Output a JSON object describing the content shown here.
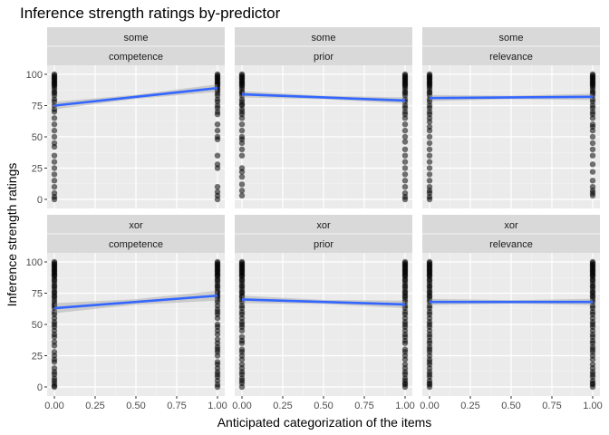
{
  "chart_data": {
    "type": "scatter",
    "title": "Inference strength ratings by-predictor",
    "xlabel": "Anticipated categorization of the items",
    "ylabel": "Inference strength ratings",
    "xlim": [
      0,
      1
    ],
    "ylim": [
      0,
      100
    ],
    "x_ticks": [
      "0.00",
      "0.25",
      "0.50",
      "0.75",
      "1.00"
    ],
    "y_ticks": [
      "0",
      "25",
      "50",
      "75",
      "100"
    ],
    "grid": true,
    "point_color": "#000000",
    "line_color": "#3366FF",
    "ribbon_color": "#999999",
    "panels": [
      {
        "row": "some",
        "col": "competence",
        "points_x0": [
          100,
          99,
          98,
          97,
          96,
          95,
          94,
          93,
          92,
          91,
          90,
          88,
          86,
          85,
          83,
          80,
          78,
          75,
          72,
          70,
          65,
          60,
          55,
          50,
          45,
          42,
          35,
          30,
          25,
          20,
          15,
          10,
          5,
          2,
          0
        ],
        "points_x1": [
          100,
          99,
          98,
          97,
          96,
          95,
          94,
          93,
          92,
          91,
          90,
          88,
          87,
          85,
          83,
          80,
          78,
          75,
          73,
          70,
          68,
          60,
          55,
          50,
          48,
          35,
          28,
          25,
          10,
          6,
          3,
          0
        ],
        "fit": [
          75,
          89
        ],
        "se": 3
      },
      {
        "row": "some",
        "col": "prior",
        "points_x0": [
          100,
          99,
          98,
          97,
          96,
          95,
          94,
          93,
          92,
          91,
          90,
          88,
          86,
          85,
          83,
          80,
          78,
          76,
          75,
          72,
          70,
          68,
          65,
          60,
          55,
          50,
          48,
          45,
          40,
          35,
          25,
          22,
          18,
          12,
          7,
          3
        ],
        "points_x1": [
          100,
          99,
          98,
          97,
          96,
          95,
          94,
          93,
          92,
          91,
          90,
          88,
          86,
          85,
          83,
          80,
          78,
          75,
          73,
          70,
          68,
          65,
          60,
          55,
          50,
          46,
          40,
          35,
          30,
          25,
          20,
          15,
          10,
          5,
          2,
          0
        ],
        "fit": [
          84,
          79
        ],
        "se": 2.5
      },
      {
        "row": "some",
        "col": "relevance",
        "points_x0": [
          100,
          99,
          98,
          97,
          96,
          95,
          94,
          93,
          92,
          91,
          90,
          88,
          86,
          85,
          83,
          80,
          78,
          75,
          73,
          70,
          68,
          65,
          62,
          58,
          55,
          50,
          45,
          40,
          35,
          30,
          25,
          20,
          15,
          10,
          7,
          5,
          2,
          0
        ],
        "points_x1": [
          100,
          99,
          98,
          97,
          96,
          95,
          94,
          93,
          92,
          91,
          90,
          88,
          86,
          85,
          83,
          80,
          78,
          75,
          73,
          70,
          68,
          65,
          60,
          58,
          55,
          50,
          45,
          40,
          35,
          28,
          22,
          15,
          10,
          7,
          5,
          3
        ],
        "fit": [
          81,
          82
        ],
        "se": 2.5
      },
      {
        "row": "xor",
        "col": "competence",
        "points_x0": [
          100,
          99,
          98,
          97,
          96,
          95,
          94,
          93,
          92,
          91,
          90,
          89,
          88,
          86,
          85,
          83,
          81,
          80,
          78,
          76,
          75,
          73,
          72,
          70,
          68,
          66,
          65,
          63,
          60,
          58,
          55,
          52,
          50,
          48,
          45,
          42,
          40,
          36,
          33,
          28,
          25,
          22,
          20,
          15,
          12,
          10,
          7,
          5,
          3,
          1,
          0
        ],
        "points_x1": [
          100,
          99,
          98,
          97,
          96,
          95,
          94,
          93,
          92,
          91,
          90,
          89,
          88,
          86,
          85,
          83,
          81,
          80,
          78,
          76,
          75,
          73,
          72,
          70,
          68,
          65,
          62,
          60,
          58,
          55,
          50,
          48,
          45,
          42,
          38,
          35,
          32,
          30,
          28,
          25,
          20,
          18,
          15,
          12,
          10,
          8,
          5,
          2,
          0
        ],
        "fit": [
          63,
          73
        ],
        "se": 4
      },
      {
        "row": "xor",
        "col": "prior",
        "points_x0": [
          100,
          99,
          98,
          97,
          96,
          95,
          94,
          93,
          92,
          91,
          90,
          89,
          88,
          86,
          85,
          83,
          81,
          80,
          78,
          76,
          75,
          73,
          72,
          70,
          68,
          65,
          63,
          60,
          58,
          55,
          52,
          50,
          48,
          45,
          40,
          37,
          35,
          30,
          28,
          25,
          22,
          18,
          15,
          12,
          10,
          7,
          5,
          3,
          0
        ],
        "points_x1": [
          100,
          99,
          98,
          97,
          96,
          95,
          94,
          93,
          92,
          91,
          90,
          89,
          88,
          86,
          85,
          83,
          81,
          80,
          78,
          76,
          75,
          73,
          72,
          70,
          68,
          65,
          63,
          60,
          58,
          55,
          52,
          50,
          48,
          45,
          42,
          40,
          37,
          35,
          30,
          28,
          25,
          22,
          18,
          15,
          12,
          10,
          7,
          5,
          3,
          2,
          0
        ],
        "fit": [
          70,
          66
        ],
        "se": 3
      },
      {
        "row": "xor",
        "col": "relevance",
        "points_x0": [
          100,
          99,
          98,
          97,
          96,
          95,
          94,
          93,
          92,
          91,
          90,
          89,
          88,
          86,
          85,
          83,
          81,
          80,
          78,
          76,
          75,
          73,
          72,
          70,
          68,
          65,
          63,
          60,
          58,
          55,
          52,
          50,
          48,
          45,
          42,
          40,
          37,
          35,
          32,
          30,
          28,
          25,
          22,
          20,
          18,
          15,
          12,
          10,
          8,
          5,
          3,
          2,
          0
        ],
        "points_x1": [
          100,
          99,
          98,
          97,
          96,
          95,
          94,
          93,
          92,
          91,
          90,
          89,
          88,
          86,
          85,
          83,
          81,
          80,
          78,
          76,
          75,
          73,
          72,
          70,
          68,
          65,
          63,
          60,
          58,
          55,
          52,
          50,
          48,
          45,
          42,
          40,
          37,
          35,
          32,
          30,
          28,
          25,
          22,
          18,
          15,
          12,
          10,
          8,
          5,
          3,
          2,
          0
        ],
        "fit": [
          68,
          68
        ],
        "se": 2.5
      }
    ]
  }
}
